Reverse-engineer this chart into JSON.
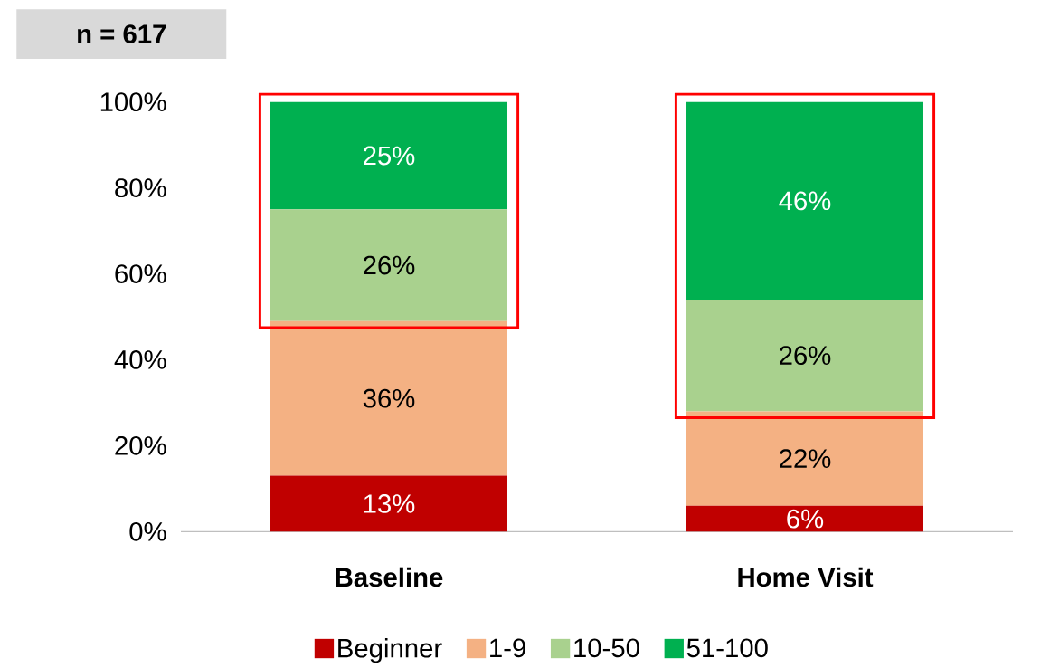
{
  "chart_data": {
    "type": "bar",
    "stacked": true,
    "categories": [
      "Baseline",
      "Home Visit"
    ],
    "series": [
      {
        "name": "Beginner",
        "color": "#c00000",
        "values": [
          13,
          6
        ],
        "value_labels": [
          "13%",
          "6%"
        ]
      },
      {
        "name": "1-9",
        "color": "#f4b183",
        "values": [
          36,
          22
        ],
        "value_labels": [
          "36%",
          "22%"
        ]
      },
      {
        "name": "10-50",
        "color": "#a9d18e",
        "values": [
          26,
          26
        ],
        "value_labels": [
          "26%",
          "26%"
        ]
      },
      {
        "name": "51-100",
        "color": "#00b050",
        "values": [
          25,
          46
        ],
        "value_labels": [
          "25%",
          "46%"
        ]
      }
    ],
    "ylim": [
      0,
      100
    ],
    "yticks": [
      {
        "value": 0,
        "label": "0%"
      },
      {
        "value": 20,
        "label": "20%"
      },
      {
        "value": 40,
        "label": "40%"
      },
      {
        "value": 60,
        "label": "60%"
      },
      {
        "value": 80,
        "label": "80%"
      },
      {
        "value": 100,
        "label": "100%"
      }
    ],
    "annotations": [
      "n = 617"
    ],
    "legend": "bottom"
  }
}
